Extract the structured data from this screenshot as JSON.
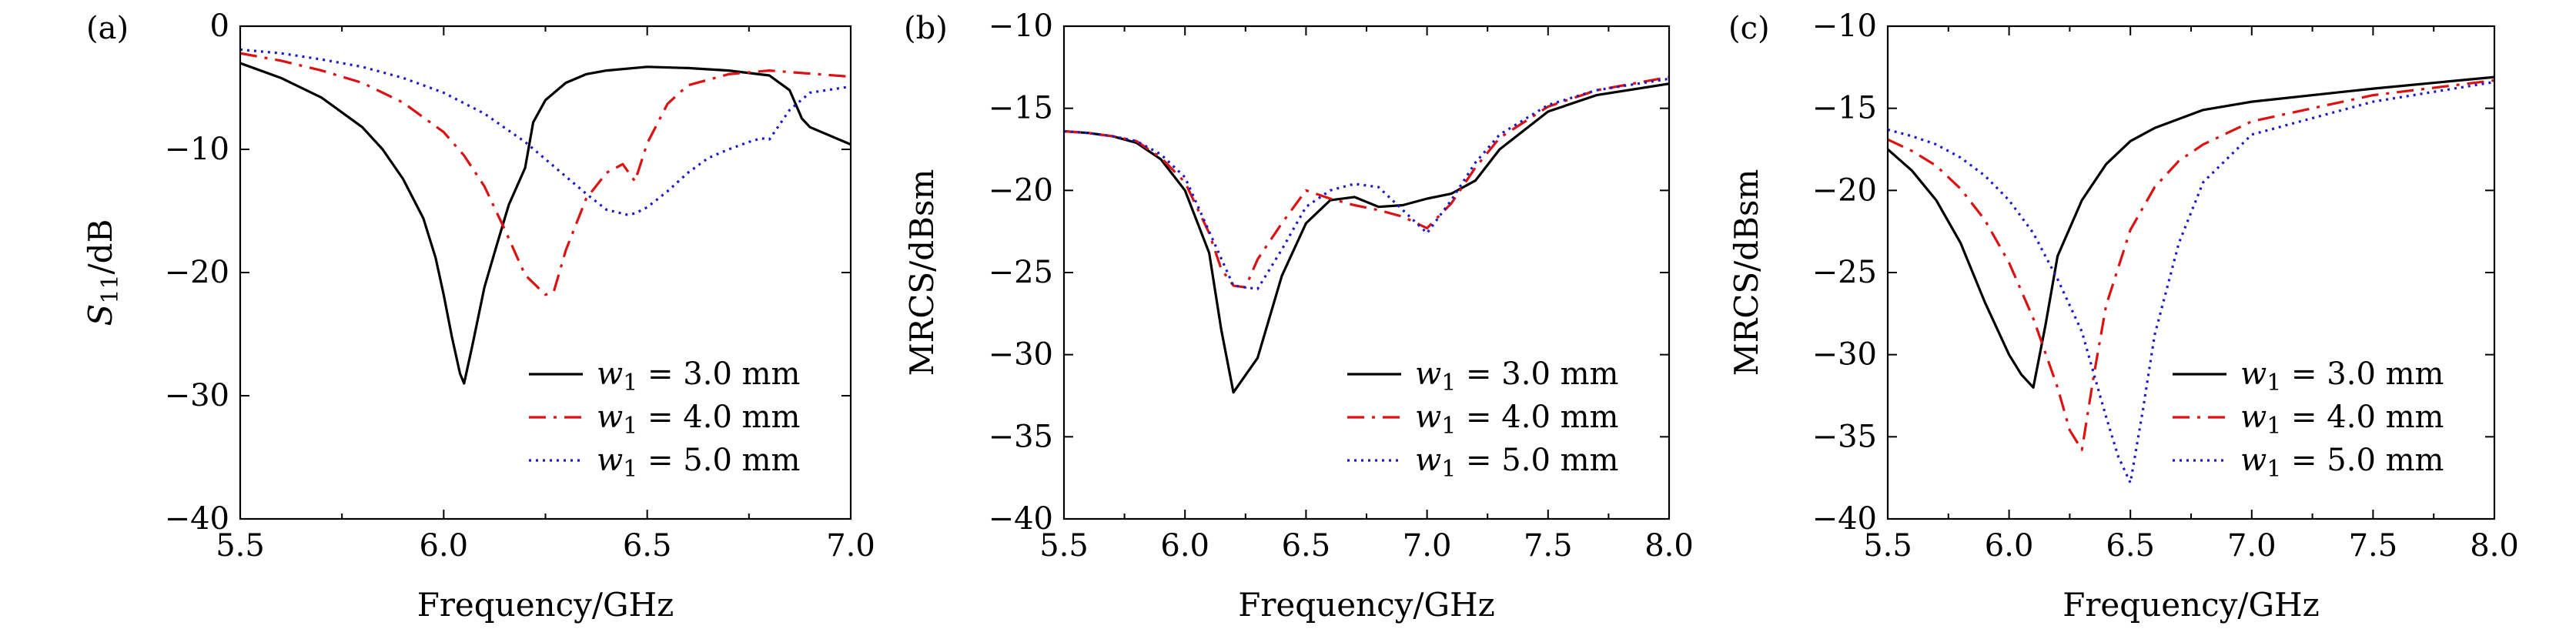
{
  "figure": {
    "background": "#ffffff"
  },
  "chart_data": [
    {
      "panel": "(a)",
      "type": "line",
      "xlabel": "Frequency/GHz",
      "ylabel": "S11/dB",
      "xlim": [
        5.5,
        7.0
      ],
      "ylim": [
        -40,
        0
      ],
      "xticks": [
        5.5,
        6.0,
        6.5,
        7.0
      ],
      "xtick_labels": [
        "5.5",
        "6.0",
        "6.5",
        "7.0"
      ],
      "yticks": [
        0,
        -10,
        -20,
        -30,
        -40
      ],
      "ytick_labels": [
        "0",
        "−10",
        "−20",
        "−30",
        "−40"
      ],
      "legend_position": "bottom-right",
      "series": [
        {
          "name": "w1 = 3.0 mm",
          "var": "w",
          "sub": "1",
          "value": "= 3.0 mm",
          "color": "#000000",
          "dash": "solid",
          "x": [
            5.5,
            5.6,
            5.7,
            5.8,
            5.85,
            5.9,
            5.95,
            5.98,
            6.0,
            6.02,
            6.04,
            6.05,
            6.07,
            6.1,
            6.13,
            6.16,
            6.2,
            6.22,
            6.25,
            6.3,
            6.35,
            6.4,
            6.5,
            6.6,
            6.7,
            6.8,
            6.85,
            6.88,
            6.9,
            7.0
          ],
          "y": [
            -3.0,
            -4.2,
            -5.8,
            -8.2,
            -10.0,
            -12.4,
            -15.6,
            -18.8,
            -21.8,
            -25.2,
            -28.2,
            -29.0,
            -26.0,
            -21.2,
            -17.8,
            -14.5,
            -11.5,
            -7.8,
            -6.0,
            -4.6,
            -3.9,
            -3.6,
            -3.3,
            -3.4,
            -3.6,
            -4.0,
            -5.2,
            -7.5,
            -8.2,
            -9.6
          ]
        },
        {
          "name": "w1 = 4.0 mm",
          "var": "w",
          "sub": "1",
          "value": "= 4.0 mm",
          "color": "#dd1111",
          "dash": "dashdot",
          "x": [
            5.5,
            5.6,
            5.7,
            5.8,
            5.9,
            6.0,
            6.05,
            6.1,
            6.15,
            6.2,
            6.25,
            6.27,
            6.3,
            6.35,
            6.4,
            6.44,
            6.47,
            6.5,
            6.55,
            6.6,
            6.7,
            6.8,
            7.0
          ],
          "y": [
            -2.2,
            -2.8,
            -3.6,
            -4.6,
            -6.2,
            -8.6,
            -10.5,
            -13.0,
            -16.5,
            -20.2,
            -21.8,
            -21.6,
            -18.2,
            -14.0,
            -11.9,
            -11.2,
            -12.6,
            -9.5,
            -6.3,
            -4.8,
            -3.9,
            -3.6,
            -4.1
          ]
        },
        {
          "name": "w1 = 5.0 mm",
          "var": "w",
          "sub": "1",
          "value": "= 5.0 mm",
          "color": "#1a1acc",
          "dash": "dotted",
          "x": [
            5.5,
            5.6,
            5.7,
            5.8,
            5.9,
            6.0,
            6.1,
            6.2,
            6.3,
            6.35,
            6.4,
            6.45,
            6.47,
            6.5,
            6.55,
            6.6,
            6.65,
            6.7,
            6.75,
            6.78,
            6.8,
            6.85,
            6.9,
            7.0
          ],
          "y": [
            -1.9,
            -2.2,
            -2.7,
            -3.3,
            -4.2,
            -5.4,
            -7.1,
            -9.4,
            -12.2,
            -13.6,
            -14.9,
            -15.3,
            -15.2,
            -14.7,
            -13.4,
            -11.9,
            -10.7,
            -10.0,
            -9.4,
            -9.1,
            -9.2,
            -6.8,
            -5.4,
            -4.9
          ]
        }
      ]
    },
    {
      "panel": "(b)",
      "type": "line",
      "xlabel": "Frequency/GHz",
      "ylabel": "MRCS/dBsm",
      "xlim": [
        5.5,
        8.0
      ],
      "ylim": [
        -40,
        -10
      ],
      "xticks": [
        5.5,
        6.0,
        6.5,
        7.0,
        7.5,
        8.0
      ],
      "xtick_labels": [
        "5.5",
        "6.0",
        "6.5",
        "7.0",
        "7.5",
        "8.0"
      ],
      "yticks": [
        -10,
        -15,
        -20,
        -25,
        -30,
        -35,
        -40
      ],
      "ytick_labels": [
        "−10",
        "−15",
        "−20",
        "−25",
        "−30",
        "−35",
        "−40"
      ],
      "legend_position": "bottom-right",
      "series": [
        {
          "name": "w1 = 3.0 mm",
          "var": "w",
          "sub": "1",
          "value": "= 3.0 mm",
          "color": "#000000",
          "dash": "solid",
          "x": [
            5.5,
            5.6,
            5.7,
            5.8,
            5.9,
            6.0,
            6.1,
            6.15,
            6.2,
            6.3,
            6.4,
            6.5,
            6.6,
            6.7,
            6.8,
            6.9,
            7.0,
            7.1,
            7.2,
            7.3,
            7.5,
            7.7,
            8.0
          ],
          "y": [
            -16.4,
            -16.5,
            -16.7,
            -17.1,
            -18.1,
            -20.0,
            -23.8,
            -28.5,
            -32.3,
            -30.2,
            -25.2,
            -22.0,
            -20.6,
            -20.4,
            -21.0,
            -20.9,
            -20.5,
            -20.2,
            -19.4,
            -17.5,
            -15.2,
            -14.2,
            -13.5
          ]
        },
        {
          "name": "w1 = 4.0 mm",
          "var": "w",
          "sub": "1",
          "value": "= 4.0 mm",
          "color": "#dd1111",
          "dash": "dashdot",
          "x": [
            5.5,
            5.6,
            5.7,
            5.8,
            5.9,
            6.0,
            6.1,
            6.15,
            6.2,
            6.25,
            6.3,
            6.4,
            6.5,
            6.6,
            6.7,
            6.8,
            6.9,
            7.0,
            7.1,
            7.2,
            7.3,
            7.5,
            7.7,
            8.0
          ],
          "y": [
            -16.4,
            -16.5,
            -16.7,
            -17.0,
            -18.0,
            -19.5,
            -22.6,
            -24.8,
            -25.8,
            -25.9,
            -24.2,
            -22.0,
            -20.0,
            -20.5,
            -20.9,
            -21.2,
            -21.6,
            -22.3,
            -20.8,
            -18.6,
            -16.8,
            -14.9,
            -13.9,
            -13.1
          ]
        },
        {
          "name": "w1 = 5.0 mm",
          "var": "w",
          "sub": "1",
          "value": "= 5.0 mm",
          "color": "#1a1acc",
          "dash": "dotted",
          "x": [
            5.5,
            5.6,
            5.7,
            5.8,
            5.9,
            6.0,
            6.1,
            6.2,
            6.3,
            6.4,
            6.5,
            6.6,
            6.7,
            6.8,
            6.9,
            7.0,
            7.1,
            7.2,
            7.3,
            7.5,
            7.7,
            8.0
          ],
          "y": [
            -16.4,
            -16.5,
            -16.7,
            -17.0,
            -17.8,
            -19.2,
            -22.5,
            -25.8,
            -26.0,
            -23.6,
            -21.0,
            -20.0,
            -19.6,
            -19.8,
            -21.2,
            -22.6,
            -20.6,
            -18.3,
            -16.6,
            -14.8,
            -13.9,
            -13.2
          ]
        }
      ]
    },
    {
      "panel": "(c)",
      "type": "line",
      "xlabel": "Frequency/GHz",
      "ylabel": "MRCS/dBsm",
      "xlim": [
        5.5,
        8.0
      ],
      "ylim": [
        -40,
        -10
      ],
      "xticks": [
        5.5,
        6.0,
        6.5,
        7.0,
        7.5,
        8.0
      ],
      "xtick_labels": [
        "5.5",
        "6.0",
        "6.5",
        "7.0",
        "7.5",
        "8.0"
      ],
      "yticks": [
        -10,
        -15,
        -20,
        -25,
        -30,
        -35,
        -40
      ],
      "ytick_labels": [
        "−10",
        "−15",
        "−20",
        "−25",
        "−30",
        "−35",
        "−40"
      ],
      "legend_position": "bottom-right",
      "series": [
        {
          "name": "w1 = 3.0 mm",
          "var": "w",
          "sub": "1",
          "value": "= 3.0 mm",
          "color": "#000000",
          "dash": "solid",
          "x": [
            5.5,
            5.6,
            5.7,
            5.8,
            5.9,
            6.0,
            6.05,
            6.1,
            6.15,
            6.2,
            6.3,
            6.4,
            6.5,
            6.6,
            6.8,
            7.0,
            7.5,
            8.0
          ],
          "y": [
            -17.5,
            -18.8,
            -20.6,
            -23.2,
            -26.8,
            -30.0,
            -31.2,
            -32.0,
            -28.2,
            -24.0,
            -20.6,
            -18.4,
            -17.0,
            -16.2,
            -15.1,
            -14.6,
            -13.8,
            -13.1
          ]
        },
        {
          "name": "w1 = 4.0 mm",
          "var": "w",
          "sub": "1",
          "value": "= 4.0 mm",
          "color": "#dd1111",
          "dash": "dashdot",
          "x": [
            5.5,
            5.6,
            5.7,
            5.8,
            5.9,
            6.0,
            6.1,
            6.2,
            6.25,
            6.3,
            6.35,
            6.4,
            6.5,
            6.6,
            6.7,
            6.8,
            7.0,
            7.5,
            8.0
          ],
          "y": [
            -16.9,
            -17.6,
            -18.5,
            -19.9,
            -21.8,
            -24.4,
            -27.8,
            -32.0,
            -34.6,
            -35.8,
            -31.2,
            -27.0,
            -22.4,
            -19.8,
            -18.2,
            -17.2,
            -15.8,
            -14.2,
            -13.3
          ]
        },
        {
          "name": "w1 = 5.0 mm",
          "var": "w",
          "sub": "1",
          "value": "= 5.0 mm",
          "color": "#1a1acc",
          "dash": "dotted",
          "x": [
            5.5,
            5.6,
            5.7,
            5.8,
            5.9,
            6.0,
            6.1,
            6.2,
            6.3,
            6.35,
            6.4,
            6.45,
            6.5,
            6.55,
            6.6,
            6.7,
            6.8,
            7.0,
            7.5,
            8.0
          ],
          "y": [
            -16.3,
            -16.7,
            -17.2,
            -18.0,
            -19.1,
            -20.6,
            -22.6,
            -25.4,
            -28.6,
            -31.2,
            -33.8,
            -36.2,
            -37.8,
            -33.5,
            -28.8,
            -23.2,
            -19.5,
            -16.6,
            -14.6,
            -13.4
          ]
        }
      ]
    }
  ]
}
